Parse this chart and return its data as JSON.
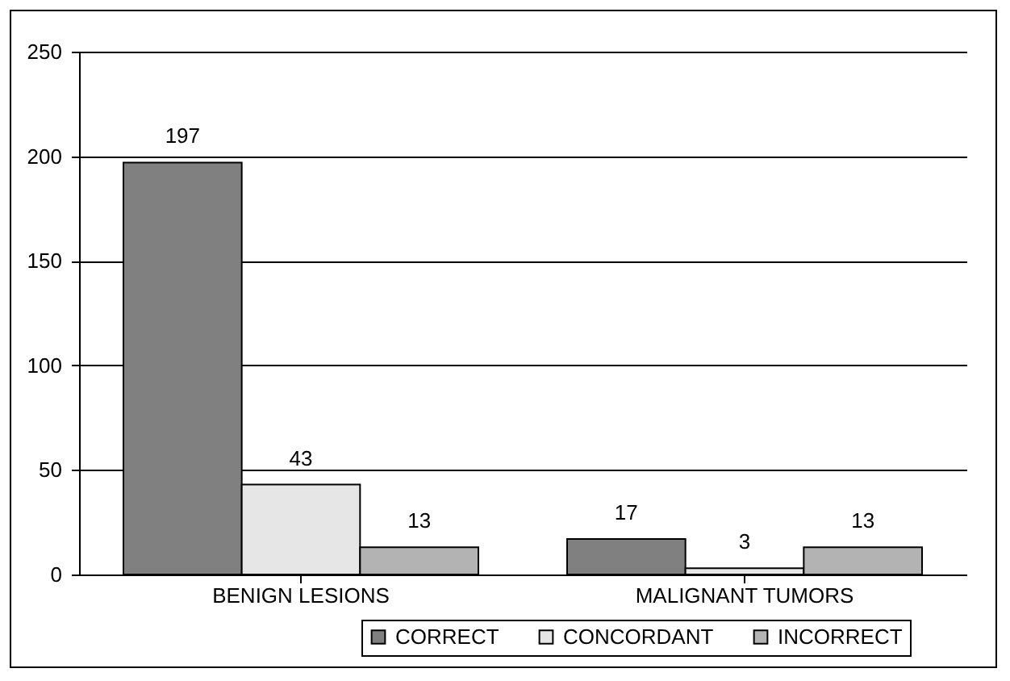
{
  "chart_data": {
    "type": "bar",
    "categories": [
      "BENIGN LESIONS",
      "MALIGNANT TUMORS"
    ],
    "series": [
      {
        "name": "CORRECT",
        "color": "#808080",
        "values": [
          197,
          17
        ]
      },
      {
        "name": "CONCORDANT",
        "color": "#e6e6e6",
        "values": [
          43,
          3
        ]
      },
      {
        "name": "INCORRECT",
        "color": "#b3b3b3",
        "values": [
          13,
          13
        ]
      }
    ],
    "ylim": [
      0,
      250
    ],
    "yticks": [
      0,
      50,
      100,
      150,
      200,
      250
    ],
    "grid": "y",
    "legend": "bottom",
    "data_labels": true
  }
}
